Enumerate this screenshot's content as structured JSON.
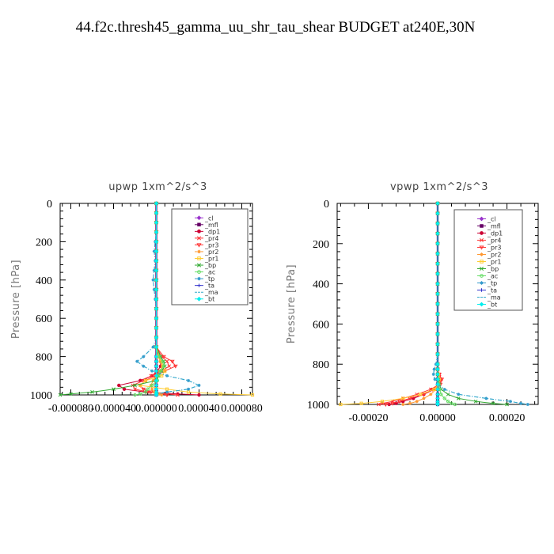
{
  "figure_title": "44.f2c.thresh45_gamma_uu_shr_tau_shear  BUDGET at240E,30N",
  "legend_entries": [
    {
      "label": "_cl",
      "color": "#9933cc",
      "marker": "diamond"
    },
    {
      "label": "_mfl",
      "color": "#660066",
      "marker": "square"
    },
    {
      "label": "_dp1",
      "color": "#cc0033",
      "marker": "circle"
    },
    {
      "label": "_pr4",
      "color": "#ff3333",
      "marker": "x"
    },
    {
      "label": "_pr3",
      "color": "#ff3333",
      "marker": "triangle-down"
    },
    {
      "label": "_pr2",
      "color": "#ff9933",
      "marker": "star"
    },
    {
      "label": "_pr1",
      "color": "#ffcc33",
      "marker": "square-open"
    },
    {
      "label": "_bp",
      "color": "#33aa33",
      "marker": "x"
    },
    {
      "label": "_ac",
      "color": "#66dd66",
      "marker": "circle-open"
    },
    {
      "label": "_tp",
      "color": "#3399cc",
      "marker": "star"
    },
    {
      "label": "_ta",
      "color": "#3333cc",
      "marker": "plus"
    },
    {
      "label": "_ma",
      "color": "#33aacc",
      "marker": "none"
    },
    {
      "label": "_bt",
      "color": "#00eeee",
      "marker": "diamond-filled"
    }
  ],
  "chart_data": [
    {
      "type": "line",
      "title": "upwp   1xm^2/s^3",
      "xlabel": "",
      "ylabel": "Pressure  [hPa]",
      "xlim": [
        -9e-05,
        9e-05
      ],
      "ylim": [
        1000,
        0
      ],
      "xticks": [
        -8e-05,
        -4e-05,
        0.0,
        4e-05,
        8e-05
      ],
      "xtick_labels": [
        "-0.000080",
        "-0.000040",
        "0.000000",
        "0.000040",
        "0.000080"
      ],
      "yticks": [
        0,
        200,
        400,
        600,
        800,
        1000
      ],
      "ytick_labels": [
        "0",
        "200",
        "400",
        "600",
        "800",
        "1000"
      ],
      "legend_position": "top-right",
      "pressure": [
        0,
        50,
        100,
        150,
        200,
        250,
        300,
        350,
        400,
        450,
        500,
        550,
        600,
        650,
        700,
        750,
        800,
        825,
        850,
        875,
        900,
        925,
        950,
        970,
        985,
        995,
        1000
      ],
      "series": [
        {
          "name": "_cl",
          "values": [
            0,
            0,
            0,
            0,
            0,
            0,
            0,
            0,
            0,
            0,
            0,
            0,
            0,
            0,
            0,
            0,
            0,
            0,
            0,
            0,
            0,
            0,
            0,
            0,
            0,
            0,
            0
          ]
        },
        {
          "name": "_mfl",
          "values": [
            0,
            0,
            0,
            0,
            0,
            0,
            0,
            0,
            0,
            0,
            0,
            0,
            0,
            0,
            0,
            0,
            0,
            0,
            0,
            0,
            0,
            0,
            0,
            0,
            0,
            0,
            0
          ]
        },
        {
          "name": "_dp1",
          "values": [
            0,
            0,
            0,
            0,
            0,
            0,
            0,
            0,
            0,
            0,
            0,
            0,
            0,
            0,
            0,
            0,
            2e-06,
            4e-06,
            4e-06,
            1e-06,
            -4e-06,
            -1.5e-05,
            -3.5e-05,
            -3e-05,
            -1e-05,
            2e-05,
            4e-05
          ]
        },
        {
          "name": "_pr4",
          "values": [
            0,
            0,
            0,
            0,
            0,
            0,
            0,
            0,
            0,
            0,
            0,
            0,
            0,
            0,
            0,
            0,
            5e-06,
            1e-05,
            1.2e-05,
            5e-06,
            -5e-06,
            -1.2e-05,
            -2.2e-05,
            -2e-05,
            -8e-06,
            1e-05,
            2e-05
          ]
        },
        {
          "name": "_pr3",
          "values": [
            0,
            0,
            0,
            0,
            0,
            0,
            0,
            0,
            0,
            0,
            0,
            0,
            0,
            0,
            0,
            0,
            7e-06,
            1.5e-05,
            1.8e-05,
            8e-06,
            -2e-06,
            -1e-05,
            -1.5e-05,
            -1.2e-05,
            -5e-06,
            5e-06,
            1e-05
          ]
        },
        {
          "name": "_pr2",
          "values": [
            0,
            0,
            0,
            0,
            0,
            0,
            0,
            0,
            0,
            0,
            0,
            0,
            0,
            0,
            0,
            0,
            2e-06,
            5e-06,
            6e-06,
            3e-06,
            0,
            -3e-06,
            -5e-06,
            -4e-06,
            -2e-06,
            3e-06,
            5e-06
          ]
        },
        {
          "name": "_pr1",
          "values": [
            0,
            0,
            0,
            0,
            0,
            0,
            0,
            0,
            0,
            0,
            0,
            0,
            0,
            0,
            0,
            0,
            2e-06,
            4e-06,
            6e-06,
            8e-06,
            5e-06,
            -1e-05,
            -1.5e-05,
            1e-05,
            3e-05,
            6e-05,
            9e-05
          ]
        },
        {
          "name": "_bp",
          "values": [
            0,
            0,
            0,
            0,
            0,
            0,
            0,
            0,
            0,
            0,
            0,
            0,
            0,
            0,
            0,
            0,
            4e-06,
            7e-06,
            8e-06,
            5e-06,
            2e-06,
            0,
            -2e-05,
            -4e-05,
            -6e-05,
            -8e-05,
            -9e-05
          ]
        },
        {
          "name": "_ac",
          "values": [
            0,
            0,
            0,
            0,
            0,
            0,
            0,
            0,
            0,
            0,
            0,
            0,
            0,
            0,
            0,
            0,
            3e-06,
            6e-06,
            7e-06,
            4e-06,
            2e-06,
            1e-06,
            -4e-06,
            -8e-06,
            -1e-05,
            -1.5e-05,
            -2e-05
          ]
        },
        {
          "name": "_tp",
          "values": [
            0,
            0,
            0,
            0,
            -1e-06,
            -2e-06,
            -1e-06,
            -2e-06,
            -3e-06,
            -2e-06,
            -1e-06,
            0,
            0,
            0,
            0,
            -3e-06,
            -1.2e-05,
            -1.8e-05,
            -1.2e-05,
            -4e-06,
            1e-05,
            3e-05,
            4e-05,
            3e-05,
            1e-05,
            0,
            0
          ]
        },
        {
          "name": "_ta",
          "values": [
            0,
            0,
            0,
            0,
            0,
            0,
            0,
            0,
            0,
            0,
            0,
            0,
            0,
            0,
            0,
            0,
            0,
            0,
            0,
            0,
            0,
            0,
            0,
            0,
            0,
            0,
            0
          ]
        },
        {
          "name": "_ma",
          "values": [
            0,
            0,
            0,
            0,
            -1e-06,
            -2e-06,
            -1e-06,
            -2e-06,
            -3e-06,
            -2e-06,
            -1e-06,
            0,
            0,
            0,
            0,
            -3e-06,
            -1.2e-05,
            -1.8e-05,
            -1.2e-05,
            -4e-06,
            1e-05,
            3e-05,
            4e-05,
            3e-05,
            1e-05,
            0,
            0
          ]
        },
        {
          "name": "_bt",
          "values": [
            0,
            0,
            0,
            0,
            0,
            0,
            0,
            0,
            0,
            0,
            0,
            0,
            0,
            0,
            0,
            0,
            0,
            0,
            0,
            0,
            0,
            0,
            0,
            0,
            0,
            0,
            0
          ]
        }
      ]
    },
    {
      "type": "line",
      "title": "vpwp   1xm^2/s^3",
      "xlabel": "",
      "ylabel": "Pressure  [hPa]",
      "xlim": [
        -0.00029,
        0.00029
      ],
      "ylim": [
        1000,
        0
      ],
      "xticks": [
        -0.0002,
        0.0,
        0.0002
      ],
      "xtick_labels": [
        "-0.00020",
        "0.00000",
        "0.00020"
      ],
      "yticks": [
        0,
        200,
        400,
        600,
        800,
        1000
      ],
      "ytick_labels": [
        "0",
        "200",
        "400",
        "600",
        "800",
        "1000"
      ],
      "legend_position": "top-right",
      "pressure": [
        0,
        50,
        100,
        150,
        200,
        250,
        300,
        350,
        400,
        450,
        500,
        550,
        600,
        650,
        700,
        750,
        800,
        825,
        850,
        875,
        900,
        925,
        950,
        970,
        985,
        995,
        1000
      ],
      "series": [
        {
          "name": "_cl",
          "values": [
            0,
            0,
            0,
            0,
            0,
            0,
            0,
            0,
            0,
            0,
            0,
            0,
            0,
            0,
            0,
            0,
            0,
            0,
            0,
            0,
            0,
            0,
            0,
            0,
            0,
            0,
            0
          ]
        },
        {
          "name": "_mfl",
          "values": [
            0,
            0,
            0,
            0,
            0,
            0,
            0,
            0,
            0,
            0,
            0,
            0,
            0,
            0,
            0,
            0,
            0,
            0,
            0,
            0,
            0,
            0,
            0,
            0,
            0,
            0,
            0
          ]
        },
        {
          "name": "_dp1",
          "values": [
            0,
            0,
            0,
            0,
            0,
            0,
            0,
            0,
            0,
            0,
            0,
            0,
            0,
            0,
            0,
            0,
            0,
            0,
            2e-06,
            4e-06,
            2e-06,
            -1e-05,
            -4e-05,
            -7e-05,
            -0.0001,
            -0.00012,
            -0.00014
          ]
        },
        {
          "name": "_pr4",
          "values": [
            0,
            0,
            0,
            0,
            0,
            0,
            0,
            0,
            0,
            0,
            0,
            0,
            0,
            0,
            0,
            0,
            0,
            0,
            5e-06,
            1e-05,
            5e-06,
            -2e-05,
            -6e-05,
            -0.0001,
            -0.00013,
            -0.00016,
            -0.00017
          ]
        },
        {
          "name": "_pr3",
          "values": [
            0,
            0,
            0,
            0,
            0,
            0,
            0,
            0,
            0,
            0,
            0,
            0,
            0,
            0,
            0,
            0,
            0,
            0,
            5e-06,
            1.2e-05,
            8e-06,
            -1.5e-05,
            -4e-05,
            -8e-05,
            -0.00011,
            -0.00013,
            -0.00015
          ]
        },
        {
          "name": "_pr2",
          "values": [
            0,
            0,
            0,
            0,
            0,
            0,
            0,
            0,
            0,
            0,
            0,
            0,
            0,
            0,
            0,
            0,
            0,
            0,
            2e-06,
            5e-06,
            4e-06,
            -5e-06,
            -2e-05,
            -4e-05,
            -6e-05,
            -8e-05,
            -0.0001
          ]
        },
        {
          "name": "_pr1",
          "values": [
            0,
            0,
            0,
            0,
            0,
            0,
            0,
            0,
            0,
            0,
            0,
            0,
            0,
            0,
            0,
            0,
            0,
            0,
            2e-06,
            4e-06,
            2e-06,
            -1e-05,
            -5e-05,
            -0.0001,
            -0.00016,
            -0.00022,
            -0.00028
          ]
        },
        {
          "name": "_bp",
          "values": [
            0,
            0,
            0,
            0,
            0,
            0,
            0,
            0,
            0,
            0,
            0,
            0,
            0,
            0,
            0,
            0,
            0,
            0,
            0,
            2e-06,
            5e-06,
            1e-05,
            3e-05,
            6e-05,
            0.00011,
            0.00016,
            0.0002
          ]
        },
        {
          "name": "_ac",
          "values": [
            0,
            0,
            0,
            0,
            0,
            0,
            0,
            0,
            0,
            0,
            0,
            0,
            0,
            0,
            0,
            0,
            0,
            0,
            0,
            1e-06,
            3e-06,
            6e-06,
            1e-05,
            2e-05,
            3e-05,
            4e-05,
            5e-05
          ]
        },
        {
          "name": "_tp",
          "values": [
            0,
            0,
            0,
            0,
            0,
            0,
            0,
            0,
            0,
            0,
            0,
            0,
            0,
            0,
            0,
            0,
            -5e-06,
            -1e-05,
            -1.2e-05,
            -8e-06,
            0,
            2e-05,
            6e-05,
            0.00014,
            0.00021,
            0.00024,
            0.00026
          ]
        },
        {
          "name": "_ta",
          "values": [
            0,
            0,
            0,
            0,
            0,
            0,
            0,
            0,
            0,
            0,
            0,
            0,
            0,
            0,
            0,
            0,
            0,
            0,
            0,
            0,
            0,
            0,
            0,
            0,
            0,
            0,
            0
          ]
        },
        {
          "name": "_ma",
          "values": [
            0,
            0,
            0,
            0,
            0,
            0,
            0,
            0,
            0,
            0,
            0,
            0,
            0,
            0,
            0,
            0,
            -5e-06,
            -1e-05,
            -1.2e-05,
            -8e-06,
            0,
            2e-05,
            6e-05,
            0.00014,
            0.00021,
            0.00024,
            0.00026
          ]
        },
        {
          "name": "_bt",
          "values": [
            0,
            0,
            0,
            0,
            0,
            0,
            0,
            0,
            0,
            0,
            0,
            0,
            0,
            0,
            0,
            0,
            0,
            0,
            0,
            0,
            0,
            0,
            0,
            0,
            0,
            0,
            0
          ]
        }
      ]
    }
  ]
}
